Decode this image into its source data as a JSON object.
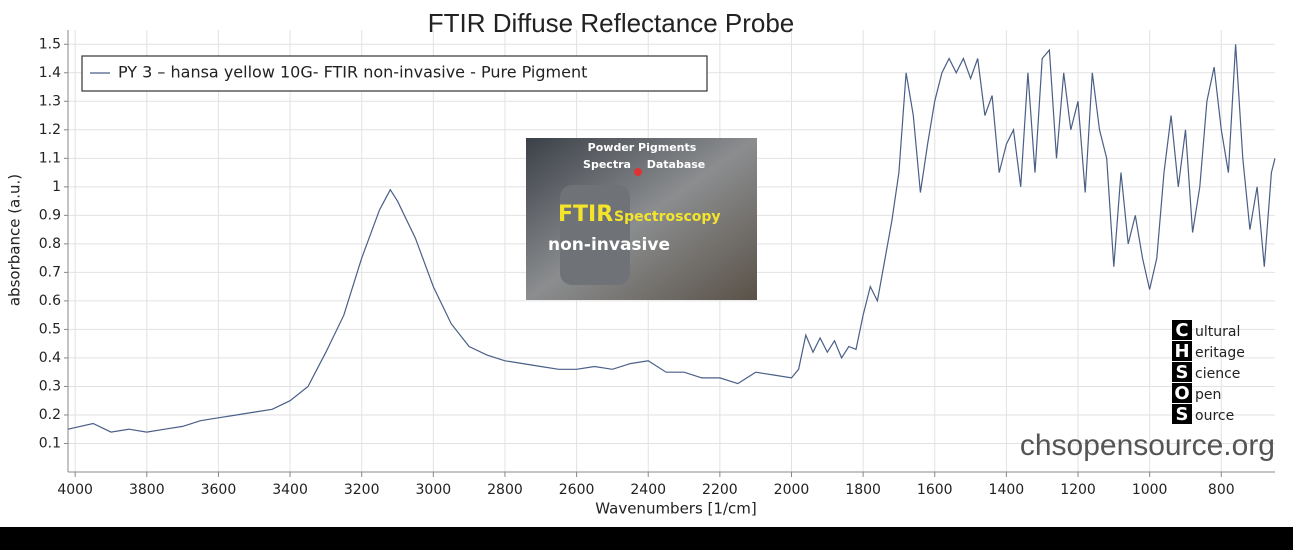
{
  "chart_data": {
    "type": "line",
    "title": "FTIR Diffuse Reflectance Probe",
    "x_label": "Wavenumbers [1/cm]",
    "y_label": "absorbance (a.u.)",
    "x": [
      4020,
      3950,
      3900,
      3850,
      3800,
      3750,
      3700,
      3650,
      3600,
      3550,
      3500,
      3450,
      3400,
      3350,
      3300,
      3250,
      3200,
      3150,
      3120,
      3100,
      3050,
      3000,
      2950,
      2900,
      2850,
      2800,
      2750,
      2700,
      2650,
      2600,
      2550,
      2500,
      2450,
      2400,
      2350,
      2300,
      2250,
      2200,
      2150,
      2100,
      2050,
      2000,
      1980,
      1960,
      1940,
      1920,
      1900,
      1880,
      1860,
      1840,
      1820,
      1800,
      1780,
      1760,
      1740,
      1720,
      1700,
      1680,
      1660,
      1640,
      1620,
      1600,
      1580,
      1560,
      1540,
      1520,
      1500,
      1480,
      1460,
      1440,
      1420,
      1400,
      1380,
      1360,
      1340,
      1320,
      1300,
      1280,
      1260,
      1240,
      1220,
      1200,
      1180,
      1160,
      1140,
      1120,
      1100,
      1080,
      1060,
      1040,
      1020,
      1000,
      980,
      960,
      940,
      920,
      900,
      880,
      860,
      840,
      820,
      800,
      780,
      760,
      740,
      720,
      700,
      680,
      660,
      650
    ],
    "series": [
      {
        "name": "PY 3 – hansa yellow 10G- FTIR non-invasive - Pure Pigment",
        "color": "#4a5f86",
        "values": [
          0.15,
          0.17,
          0.14,
          0.15,
          0.14,
          0.15,
          0.16,
          0.18,
          0.19,
          0.2,
          0.21,
          0.22,
          0.25,
          0.3,
          0.42,
          0.55,
          0.75,
          0.92,
          0.99,
          0.95,
          0.82,
          0.65,
          0.52,
          0.44,
          0.41,
          0.39,
          0.38,
          0.37,
          0.36,
          0.36,
          0.37,
          0.36,
          0.38,
          0.39,
          0.35,
          0.35,
          0.33,
          0.33,
          0.31,
          0.35,
          0.34,
          0.33,
          0.36,
          0.48,
          0.42,
          0.47,
          0.42,
          0.46,
          0.4,
          0.44,
          0.43,
          0.55,
          0.65,
          0.6,
          0.74,
          0.88,
          1.05,
          1.4,
          1.25,
          0.98,
          1.15,
          1.3,
          1.4,
          1.45,
          1.4,
          1.45,
          1.38,
          1.45,
          1.25,
          1.32,
          1.05,
          1.15,
          1.2,
          1.0,
          1.4,
          1.05,
          1.45,
          1.48,
          1.1,
          1.4,
          1.2,
          1.3,
          0.98,
          1.4,
          1.2,
          1.1,
          0.72,
          1.05,
          0.8,
          0.9,
          0.75,
          0.64,
          0.75,
          1.05,
          1.25,
          1.0,
          1.2,
          0.84,
          1.0,
          1.3,
          1.42,
          1.2,
          1.05,
          1.5,
          1.1,
          0.85,
          1.0,
          0.72,
          1.05,
          1.1
        ]
      }
    ],
    "xlim": [
      4020,
      650
    ],
    "ylim": [
      0,
      1.55
    ],
    "xticks": [
      4000,
      3800,
      3600,
      3400,
      3200,
      3000,
      2800,
      2600,
      2400,
      2200,
      2000,
      1800,
      1600,
      1400,
      1200,
      1000,
      800
    ],
    "yticks": [
      0.1,
      0.2,
      0.3,
      0.4,
      0.5,
      0.6,
      0.7,
      0.8,
      0.9,
      1,
      1.1,
      1.2,
      1.3,
      1.4,
      1.5
    ],
    "grid": true,
    "legend": "upper left"
  },
  "inset": {
    "line1": "Powder Pigments",
    "line2a": "Spectra",
    "line2b": "Database",
    "big": "FTIR",
    "small": "Spectroscopy",
    "sub": "non-invasive"
  },
  "logo": {
    "letters": [
      "C",
      "H",
      "S",
      "O",
      "S"
    ],
    "words": [
      "ultural",
      "eritage",
      "cience",
      "pen",
      "ource"
    ]
  },
  "watermark": "chsopensource.org"
}
